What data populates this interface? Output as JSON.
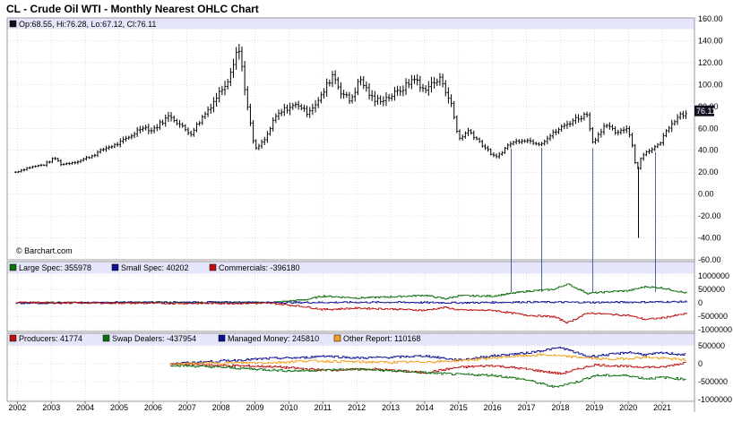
{
  "title": "CL - Crude Oil WTI - Monthly Nearest OHLC Chart",
  "watermark": "© Barchart.com",
  "colors": {
    "ohlc": "#000000",
    "panel_header_bg": "#e6e6fa",
    "grid": "#c8c8c8",
    "price_line": "#1f3f8f",
    "large_spec": "#107010",
    "small_spec": "#101090",
    "commercials": "#c01010",
    "producers": "#c01010",
    "swap_dealers": "#107010",
    "managed_money": "#101090",
    "other_report": "#f0a020",
    "last_badge_bg": "#101020"
  },
  "price_panel": {
    "legend": [
      {
        "text": "Op:68.55, Hi:76.28, Lo:67.12, Cl:76.11",
        "color": "#101010"
      }
    ],
    "last_price_label": "76.11"
  },
  "cot_panel_1": {
    "legend": [
      {
        "text": "Large Spec: 355978",
        "color": "#107010"
      },
      {
        "text": "Small Spec: 40202",
        "color": "#101090"
      },
      {
        "text": "Commercials: -396180",
        "color": "#c01010"
      }
    ],
    "y_ticks": [
      "1000000",
      "500000",
      "0",
      "-500000",
      "-1000000"
    ]
  },
  "cot_panel_2": {
    "legend": [
      {
        "text": "Producers: 41774",
        "color": "#c01010"
      },
      {
        "text": "Swap Dealers: -437954",
        "color": "#107010"
      },
      {
        "text": "Managed Money: 245810",
        "color": "#101090"
      },
      {
        "text": "Other Report: 110168",
        "color": "#f0a020"
      }
    ],
    "y_ticks": [
      "1000000",
      "500000",
      "0",
      "-500000",
      "-1000000"
    ]
  },
  "x_axis": {
    "labels": [
      "2002",
      "2003",
      "2004",
      "2005",
      "2006",
      "2007",
      "2008",
      "2009",
      "2010",
      "2011",
      "2012",
      "2013",
      "2014",
      "2015",
      "2016",
      "2017",
      "2018",
      "2019",
      "2020",
      "2021"
    ]
  },
  "chart_data": [
    {
      "type": "ohlc",
      "title": "CL - Crude Oil WTI - Monthly Nearest OHLC Chart",
      "x_unit": "year",
      "ylim": [
        -60,
        160
      ],
      "y_ticks": [
        "160.00",
        "140.00",
        "120.00",
        "100.00",
        "80.00",
        "60.00",
        "40.00",
        "20.00",
        "0.00",
        "-20.00",
        "-40.00",
        "-60.00"
      ],
      "note": "monthly close path keypoints (year, close); each monthly bar drawn with high/low range",
      "close_path": [
        [
          2001.95,
          20
        ],
        [
          2002.3,
          24
        ],
        [
          2002.8,
          27
        ],
        [
          2003.1,
          33
        ],
        [
          2003.3,
          27
        ],
        [
          2003.8,
          30
        ],
        [
          2004.2,
          35
        ],
        [
          2004.6,
          42
        ],
        [
          2004.9,
          45
        ],
        [
          2005.3,
          52
        ],
        [
          2005.7,
          62
        ],
        [
          2005.95,
          58
        ],
        [
          2006.5,
          72
        ],
        [
          2006.9,
          60
        ],
        [
          2007.1,
          55
        ],
        [
          2007.5,
          72
        ],
        [
          2007.9,
          90
        ],
        [
          2008.2,
          105
        ],
        [
          2008.5,
          135
        ],
        [
          2008.6,
          120
        ],
        [
          2008.8,
          75
        ],
        [
          2009.0,
          40
        ],
        [
          2009.3,
          50
        ],
        [
          2009.6,
          70
        ],
        [
          2009.9,
          78
        ],
        [
          2010.3,
          82
        ],
        [
          2010.5,
          74
        ],
        [
          2010.9,
          86
        ],
        [
          2011.3,
          110
        ],
        [
          2011.5,
          95
        ],
        [
          2011.8,
          85
        ],
        [
          2012.1,
          105
        ],
        [
          2012.5,
          85
        ],
        [
          2012.9,
          88
        ],
        [
          2013.2,
          93
        ],
        [
          2013.5,
          100
        ],
        [
          2013.7,
          107
        ],
        [
          2013.9,
          95
        ],
        [
          2014.3,
          102
        ],
        [
          2014.5,
          105
        ],
        [
          2014.8,
          80
        ],
        [
          2015.0,
          50
        ],
        [
          2015.3,
          58
        ],
        [
          2015.7,
          45
        ],
        [
          2015.95,
          37
        ],
        [
          2016.1,
          33
        ],
        [
          2016.5,
          46
        ],
        [
          2016.9,
          50
        ],
        [
          2017.4,
          46
        ],
        [
          2017.9,
          58
        ],
        [
          2018.4,
          68
        ],
        [
          2018.8,
          73
        ],
        [
          2018.95,
          47
        ],
        [
          2019.3,
          63
        ],
        [
          2019.7,
          55
        ],
        [
          2019.95,
          61
        ],
        [
          2020.1,
          48
        ],
        [
          2020.25,
          20
        ],
        [
          2020.4,
          36
        ],
        [
          2020.9,
          45
        ],
        [
          2021.2,
          62
        ],
        [
          2021.5,
          73
        ],
        [
          2021.6,
          72
        ],
        [
          2021.72,
          76
        ]
      ],
      "spikes": [
        {
          "x": 2020.3,
          "low": -40
        }
      ]
    },
    {
      "type": "line",
      "panel": "COT Legacy",
      "ylim": [
        -1000000,
        1000000
      ],
      "series": [
        {
          "name": "Large Spec",
          "points": [
            [
              2001.95,
              0
            ],
            [
              2006.5,
              20000
            ],
            [
              2009.5,
              10000
            ],
            [
              2010.5,
              120000
            ],
            [
              2011.0,
              250000
            ],
            [
              2012.0,
              180000
            ],
            [
              2013.0,
              220000
            ],
            [
              2014.0,
              280000
            ],
            [
              2014.6,
              150000
            ],
            [
              2015.0,
              260000
            ],
            [
              2016.0,
              250000
            ],
            [
              2017.0,
              430000
            ],
            [
              2017.8,
              500000
            ],
            [
              2018.2,
              700000
            ],
            [
              2018.8,
              350000
            ],
            [
              2019.5,
              420000
            ],
            [
              2020.0,
              450000
            ],
            [
              2020.5,
              600000
            ],
            [
              2021.0,
              550000
            ],
            [
              2021.72,
              356000
            ]
          ]
        },
        {
          "name": "Small Spec",
          "points": [
            [
              2001.95,
              -20000
            ],
            [
              2005.0,
              15000
            ],
            [
              2008.0,
              20000
            ],
            [
              2010.0,
              10000
            ],
            [
              2013.0,
              20000
            ],
            [
              2015.0,
              0
            ],
            [
              2017.0,
              30000
            ],
            [
              2019.0,
              15000
            ],
            [
              2021.72,
              40000
            ]
          ]
        },
        {
          "name": "Commercials",
          "points": [
            [
              2001.95,
              10000
            ],
            [
              2006.5,
              -20000
            ],
            [
              2009.5,
              -20000
            ],
            [
              2010.5,
              -150000
            ],
            [
              2011.0,
              -250000
            ],
            [
              2012.0,
              -200000
            ],
            [
              2013.0,
              -230000
            ],
            [
              2014.0,
              -280000
            ],
            [
              2014.6,
              -170000
            ],
            [
              2015.0,
              -270000
            ],
            [
              2016.0,
              -280000
            ],
            [
              2017.0,
              -460000
            ],
            [
              2017.8,
              -520000
            ],
            [
              2018.2,
              -740000
            ],
            [
              2018.8,
              -380000
            ],
            [
              2019.5,
              -430000
            ],
            [
              2020.0,
              -470000
            ],
            [
              2020.5,
              -620000
            ],
            [
              2021.0,
              -560000
            ],
            [
              2021.72,
              -396000
            ]
          ]
        }
      ]
    },
    {
      "type": "line",
      "panel": "COT Disaggregated",
      "ylim": [
        -1000000,
        1000000
      ],
      "series": [
        {
          "name": "Producers",
          "points": [
            [
              2006.5,
              0
            ],
            [
              2008.0,
              -50000
            ],
            [
              2009.5,
              -80000
            ],
            [
              2011.0,
              -180000
            ],
            [
              2012.5,
              -150000
            ],
            [
              2014.0,
              -250000
            ],
            [
              2015.0,
              -100000
            ],
            [
              2016.0,
              -50000
            ],
            [
              2017.0,
              -150000
            ],
            [
              2018.0,
              -280000
            ],
            [
              2019.0,
              -30000
            ],
            [
              2020.0,
              -80000
            ],
            [
              2021.0,
              -100000
            ],
            [
              2021.72,
              41774
            ]
          ]
        },
        {
          "name": "Swap Dealers",
          "points": [
            [
              2006.5,
              -40000
            ],
            [
              2008.0,
              -100000
            ],
            [
              2009.0,
              -150000
            ],
            [
              2010.0,
              -200000
            ],
            [
              2011.0,
              -180000
            ],
            [
              2012.0,
              -150000
            ],
            [
              2013.0,
              -200000
            ],
            [
              2014.0,
              -250000
            ],
            [
              2015.0,
              -300000
            ],
            [
              2016.0,
              -320000
            ],
            [
              2017.0,
              -450000
            ],
            [
              2017.8,
              -650000
            ],
            [
              2018.5,
              -500000
            ],
            [
              2019.0,
              -330000
            ],
            [
              2020.0,
              -330000
            ],
            [
              2020.5,
              -420000
            ],
            [
              2021.0,
              -380000
            ],
            [
              2021.72,
              -437954
            ]
          ]
        },
        {
          "name": "Managed Money",
          "points": [
            [
              2006.5,
              0
            ],
            [
              2007.5,
              50000
            ],
            [
              2008.5,
              100000
            ],
            [
              2009.5,
              150000
            ],
            [
              2010.5,
              170000
            ],
            [
              2011.0,
              220000
            ],
            [
              2012.0,
              160000
            ],
            [
              2013.0,
              180000
            ],
            [
              2014.0,
              220000
            ],
            [
              2015.0,
              100000
            ],
            [
              2016.0,
              220000
            ],
            [
              2017.0,
              300000
            ],
            [
              2018.0,
              450000
            ],
            [
              2018.8,
              200000
            ],
            [
              2019.5,
              260000
            ],
            [
              2020.0,
              320000
            ],
            [
              2020.5,
              250000
            ],
            [
              2021.0,
              300000
            ],
            [
              2021.72,
              245810
            ]
          ]
        },
        {
          "name": "Other Report",
          "points": [
            [
              2006.5,
              -10000
            ],
            [
              2008.0,
              20000
            ],
            [
              2009.5,
              30000
            ],
            [
              2010.5,
              80000
            ],
            [
              2011.5,
              60000
            ],
            [
              2013.0,
              40000
            ],
            [
              2014.5,
              60000
            ],
            [
              2015.5,
              120000
            ],
            [
              2016.5,
              200000
            ],
            [
              2017.5,
              250000
            ],
            [
              2018.5,
              180000
            ],
            [
              2019.5,
              120000
            ],
            [
              2020.5,
              180000
            ],
            [
              2021.72,
              110168
            ]
          ]
        }
      ]
    }
  ]
}
